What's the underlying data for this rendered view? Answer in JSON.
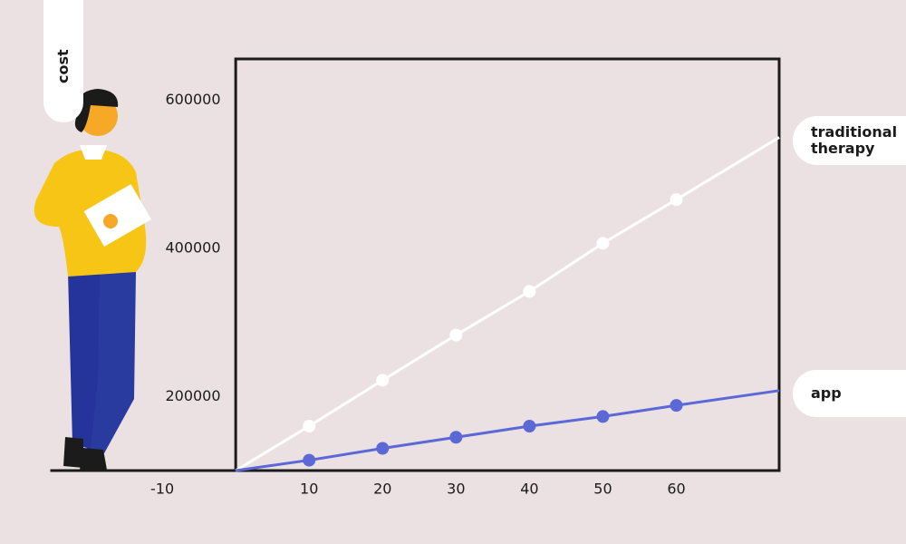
{
  "chart_data": {
    "type": "line",
    "y_label": "cost",
    "x": [
      0,
      10,
      20,
      30,
      40,
      50,
      60,
      74
    ],
    "series": [
      {
        "name": "traditional therapy",
        "color": "#ffffff",
        "values": [
          100000,
          160000,
          222000,
          283000,
          342000,
          407000,
          466000,
          550000
        ]
      },
      {
        "name": "app",
        "color": "#5b68d6",
        "values": [
          100000,
          114000,
          130000,
          145000,
          160000,
          173000,
          188000,
          208000
        ]
      }
    ],
    "xlim": [
      -25,
      74
    ],
    "xticks": [
      -10,
      10,
      20,
      30,
      40,
      50,
      60
    ],
    "ylim": [
      100000,
      656000
    ],
    "yticks": [
      200000,
      400000,
      600000
    ]
  }
}
